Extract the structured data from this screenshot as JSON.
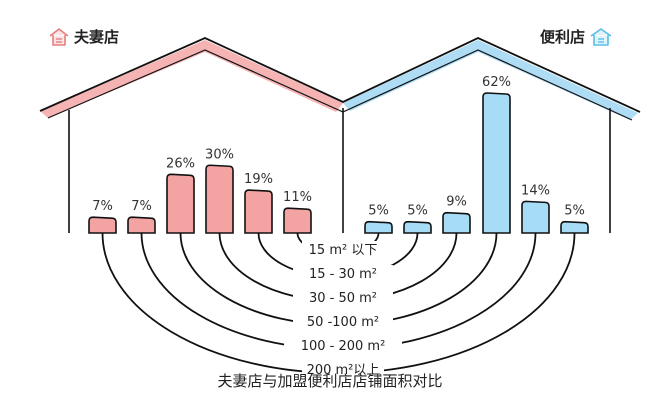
{
  "chart_data": {
    "type": "bar",
    "title": "夫妻店与加盟便利店店铺面积对比",
    "categories": [
      "15 m² 以下",
      "15 - 30 m²",
      "30 - 50 m²",
      "50 -100 m²",
      "100 - 200 m²",
      "200 m²以上"
    ],
    "series": [
      {
        "name": "夫妻店",
        "values": [
          7,
          7,
          26,
          30,
          19,
          11
        ],
        "labels": [
          "7%",
          "7%",
          "26%",
          "30%",
          "19%",
          "11%"
        ],
        "color": "#f4a3a3"
      },
      {
        "name": "便利店",
        "values": [
          5,
          5,
          9,
          62,
          14,
          5
        ],
        "labels": [
          "5%",
          "5%",
          "9%",
          "62%",
          "14%",
          "5%"
        ],
        "color": "#a7dcf7"
      }
    ],
    "ylim": [
      0,
      62
    ],
    "colors": {
      "left_roof": "#f3a6a6",
      "right_roof": "#9fd6f2",
      "outline": "#111111"
    }
  }
}
